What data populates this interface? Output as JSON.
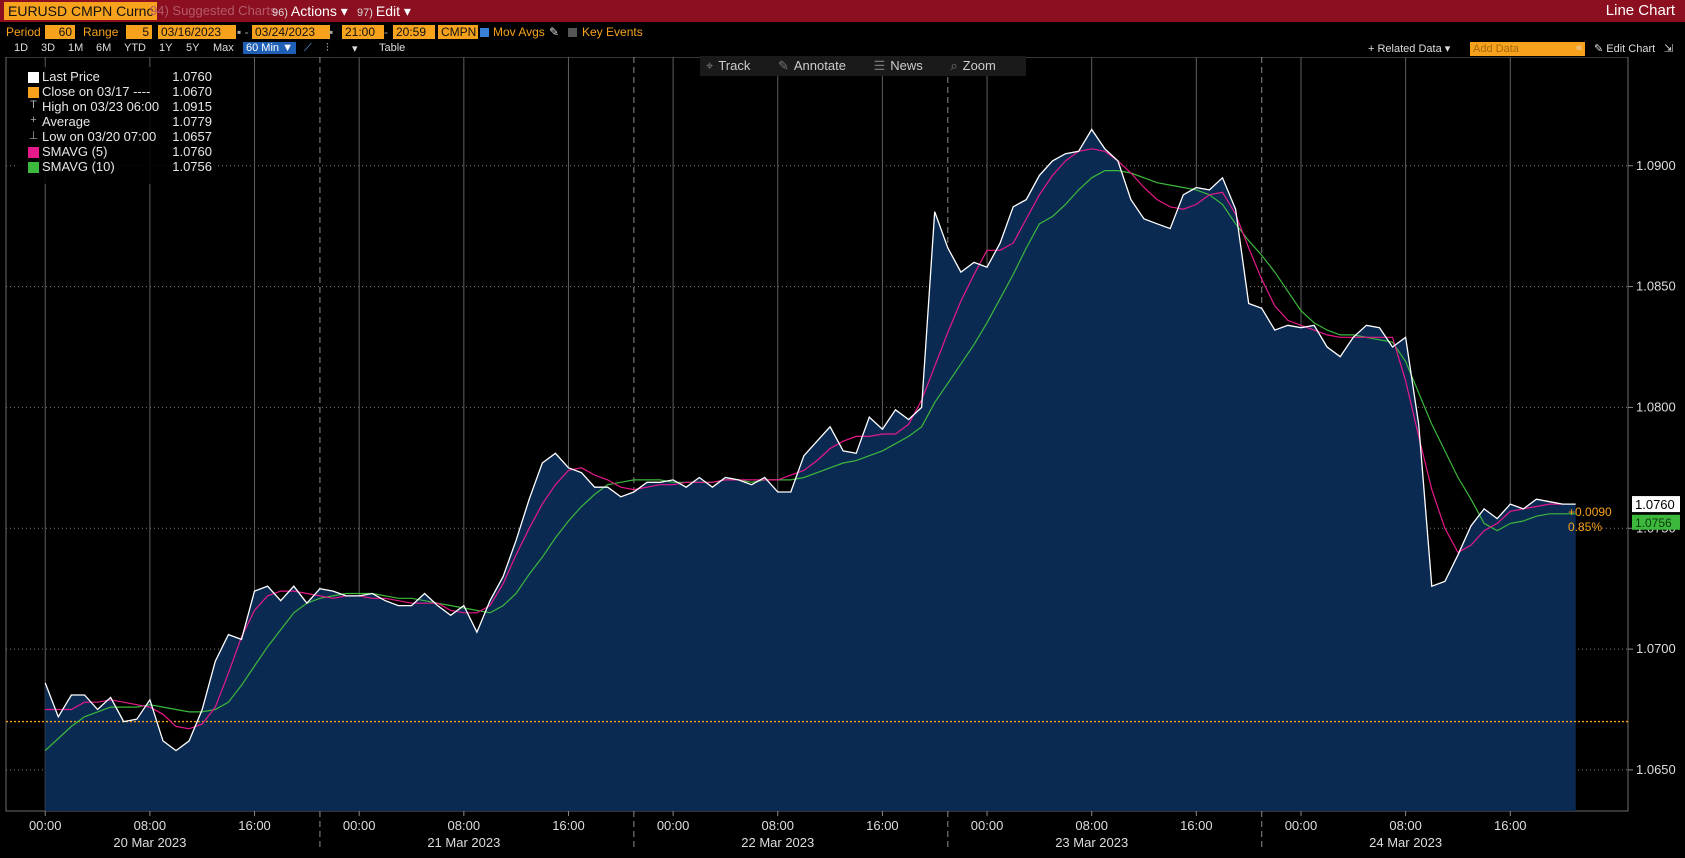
{
  "header": {
    "ticker": "EURUSD CMPN Curnc",
    "suggested": "94) Suggested Charts",
    "actions_num": "96)",
    "actions_label": "Actions",
    "edit_num": "97)",
    "edit_label": "Edit",
    "chart_title": "Line Chart"
  },
  "controls": {
    "period_label": "Period",
    "period_value": "60",
    "range_label": "Range",
    "range_value": "5",
    "start_date": "03/16/2023",
    "end_date": "03/24/2023",
    "start_time": "21:00",
    "end_time": "20:59",
    "source": "CMPN",
    "mov_avgs": "Mov Avgs",
    "key_events": "Key Events"
  },
  "periods": [
    "1D",
    "3D",
    "1M",
    "6M",
    "YTD",
    "1Y",
    "5Y",
    "Max"
  ],
  "selected_period": "60 Min",
  "table_label": "Table",
  "related_data": "+ Related Data",
  "add_data_placeholder": "Add Data",
  "edit_chart": "Edit Chart",
  "tools": [
    "Track",
    "Annotate",
    "News",
    "Zoom"
  ],
  "legend": [
    {
      "name": "Last Price",
      "value": "1.0760",
      "color": "#ffffff"
    },
    {
      "name": "Close on 03/17 ----",
      "value": "1.0670",
      "color": "#f7a21c"
    },
    {
      "name": "High on 03/23 06:00",
      "value": "1.0915",
      "glyph": "T"
    },
    {
      "name": "Average",
      "value": "1.0779",
      "glyph": "+"
    },
    {
      "name": "Low on 03/20 07:00",
      "value": "1.0657",
      "glyph": "⊥"
    },
    {
      "name": "SMAVG (5)",
      "value": "1.0760",
      "color": "#e6198a"
    },
    {
      "name": "SMAVG (10)",
      "value": "1.0756",
      "color": "#3cb83c"
    }
  ],
  "axis": {
    "y_ticks": [
      "1.0650",
      "1.0700",
      "1.0750",
      "1.0800",
      "1.0850",
      "1.0900"
    ],
    "x_ticks": [
      "00:00",
      "08:00",
      "16:00",
      "00:00",
      "08:00",
      "16:00",
      "00:00",
      "08:00",
      "16:00",
      "00:00",
      "08:00",
      "16:00",
      "00:00",
      "08:00",
      "16:00"
    ],
    "day_labels": [
      "20 Mar 2023",
      "21 Mar 2023",
      "22 Mar 2023",
      "23 Mar 2023",
      "24 Mar 2023"
    ],
    "last_price_tag": "1.0760",
    "smavg10_tag": "1.0756",
    "change_abs": "+0.0090",
    "change_pct": "0.85%"
  },
  "chart_data": {
    "type": "area",
    "title": "",
    "ylim": [
      1.0633,
      1.0945
    ],
    "xlim": [
      -3,
      121
    ],
    "reference_close": 1.067,
    "x_ticks_hours": [
      0,
      8,
      16,
      24,
      32,
      40,
      48,
      56,
      64,
      72,
      80,
      88,
      96,
      104,
      112
    ],
    "day_separators_hours": [
      -3,
      21,
      45,
      69,
      93
    ],
    "series": [
      {
        "name": "Last Price",
        "color": "#ffffff",
        "values": [
          1.0686,
          1.0672,
          1.0681,
          1.0681,
          1.0675,
          1.068,
          1.067,
          1.0671,
          1.0679,
          1.0662,
          1.0658,
          1.0662,
          1.0675,
          1.0695,
          1.0706,
          1.0704,
          1.0724,
          1.0726,
          1.072,
          1.0726,
          1.0719,
          1.0725,
          1.0724,
          1.0722,
          1.0722,
          1.0723,
          1.072,
          1.0718,
          1.0718,
          1.0723,
          1.0718,
          1.0714,
          1.0718,
          1.0707,
          1.072,
          1.073,
          1.0745,
          1.0762,
          1.0777,
          1.0781,
          1.0775,
          1.0773,
          1.0767,
          1.0767,
          1.0763,
          1.0765,
          1.0769,
          1.0769,
          1.077,
          1.0767,
          1.0771,
          1.0767,
          1.0771,
          1.077,
          1.0768,
          1.0771,
          1.0765,
          1.0765,
          1.078,
          1.0786,
          1.0792,
          1.0782,
          1.0781,
          1.0796,
          1.0791,
          1.0799,
          1.0795,
          1.08,
          1.0881,
          1.0866,
          1.0856,
          1.086,
          1.0858,
          1.0868,
          1.0883,
          1.0886,
          1.0896,
          1.0902,
          1.0905,
          1.0906,
          1.0915,
          1.0907,
          1.0902,
          1.0886,
          1.0878,
          1.0876,
          1.0874,
          1.0888,
          1.0891,
          1.089,
          1.0895,
          1.0882,
          1.0843,
          1.0841,
          1.0832,
          1.0834,
          1.0833,
          1.0834,
          1.0825,
          1.0821,
          1.0829,
          1.0834,
          1.0833,
          1.0825,
          1.0829,
          1.0793,
          1.0726,
          1.0728,
          1.0739,
          1.0751,
          1.0758,
          1.0754,
          1.076,
          1.0758,
          1.0762,
          1.0761,
          1.076,
          1.076
        ]
      },
      {
        "name": "SMAVG (5)",
        "color": "#e6198a",
        "values": [
          1.0675,
          1.0675,
          1.0675,
          1.0678,
          1.0678,
          1.0679,
          1.0678,
          1.0677,
          1.0676,
          1.0673,
          1.0668,
          1.0667,
          1.0669,
          1.0676,
          1.069,
          1.0705,
          1.0716,
          1.0722,
          1.0724,
          1.0724,
          1.0723,
          1.0722,
          1.0721,
          1.0722,
          1.0722,
          1.0721,
          1.0721,
          1.072,
          1.0719,
          1.0719,
          1.0719,
          1.0716,
          1.0715,
          1.0715,
          1.0718,
          1.0727,
          1.0739,
          1.075,
          1.076,
          1.0768,
          1.0774,
          1.0775,
          1.0772,
          1.077,
          1.0767,
          1.0766,
          1.0767,
          1.0768,
          1.0768,
          1.0769,
          1.0769,
          1.0769,
          1.077,
          1.077,
          1.077,
          1.077,
          1.077,
          1.0772,
          1.0774,
          1.0778,
          1.0783,
          1.0786,
          1.0788,
          1.0788,
          1.0789,
          1.0789,
          1.0793,
          1.0803,
          1.0817,
          1.0831,
          1.0844,
          1.0855,
          1.0865,
          1.0865,
          1.0868,
          1.0878,
          1.0888,
          1.0896,
          1.0902,
          1.0906,
          1.0907,
          1.0906,
          1.0902,
          1.0897,
          1.0891,
          1.0886,
          1.0883,
          1.0882,
          1.0884,
          1.0888,
          1.0889,
          1.088,
          1.0866,
          1.0853,
          1.0842,
          1.0836,
          1.0834,
          1.0832,
          1.083,
          1.0829,
          1.0829,
          1.0829,
          1.0829,
          1.0829,
          1.0811,
          1.0788,
          1.0766,
          1.075,
          1.074,
          1.0743,
          1.0749,
          1.0752,
          1.0757,
          1.0758,
          1.0759,
          1.076,
          1.076
        ]
      },
      {
        "name": "SMAVG (10)",
        "color": "#3cb83c",
        "values": [
          1.0658,
          1.0663,
          1.0668,
          1.0672,
          1.0674,
          1.0676,
          1.0676,
          1.0676,
          1.0677,
          1.0676,
          1.0675,
          1.0674,
          1.0674,
          1.0675,
          1.0678,
          1.0685,
          1.0693,
          1.0701,
          1.0708,
          1.0715,
          1.0719,
          1.0721,
          1.0722,
          1.0723,
          1.0723,
          1.0723,
          1.0722,
          1.0721,
          1.0721,
          1.072,
          1.0719,
          1.0718,
          1.0717,
          1.0716,
          1.0715,
          1.0718,
          1.0723,
          1.0731,
          1.0738,
          1.0746,
          1.0753,
          1.0759,
          1.0764,
          1.0768,
          1.0769,
          1.077,
          1.077,
          1.077,
          1.0769,
          1.0769,
          1.0769,
          1.0769,
          1.077,
          1.077,
          1.0769,
          1.077,
          1.077,
          1.077,
          1.0771,
          1.0773,
          1.0775,
          1.0777,
          1.0778,
          1.078,
          1.0782,
          1.0785,
          1.0788,
          1.0792,
          1.0802,
          1.081,
          1.0818,
          1.0826,
          1.0835,
          1.0845,
          1.0855,
          1.0866,
          1.0876,
          1.0879,
          1.0884,
          1.089,
          1.0895,
          1.0898,
          1.0898,
          1.0897,
          1.0895,
          1.0893,
          1.0892,
          1.0891,
          1.089,
          1.0888,
          1.0884,
          1.0876,
          1.0869,
          1.0863,
          1.0856,
          1.0848,
          1.084,
          1.0835,
          1.0832,
          1.083,
          1.083,
          1.0829,
          1.0828,
          1.0827,
          1.0819,
          1.0806,
          1.0793,
          1.0782,
          1.0771,
          1.0762,
          1.0752,
          1.0749,
          1.0752,
          1.0753,
          1.0755,
          1.0756,
          1.0756,
          1.0756
        ]
      }
    ],
    "x_start_hour": 0
  }
}
